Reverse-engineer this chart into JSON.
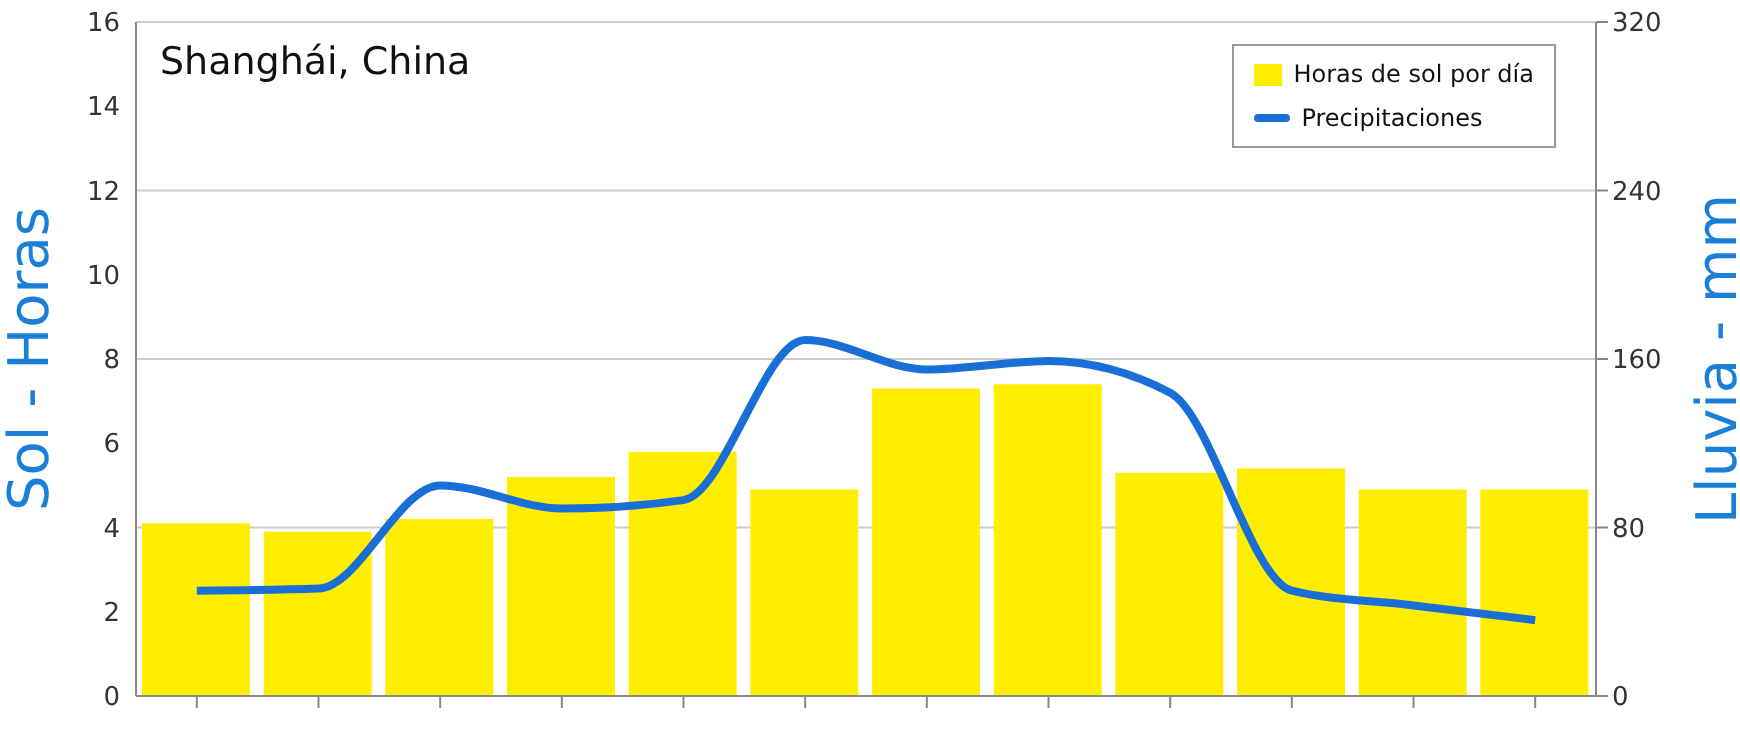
{
  "chart_data": {
    "type": "bar",
    "title": "Shanghái, China",
    "ylabel": "Sol - Horas",
    "y2label": "Lluvia - mm",
    "categories": [
      null,
      null,
      null,
      null,
      null,
      null,
      null,
      null,
      null,
      null,
      null,
      null
    ],
    "series": [
      {
        "name": "Horas de sol por día",
        "color": "#ffee00",
        "values": [
          4.1,
          3.9,
          4.2,
          5.2,
          5.8,
          4.9,
          7.3,
          7.4,
          5.3,
          5.4,
          4.9,
          4.9
        ]
      },
      {
        "name": "Precipitaciones",
        "type": "line",
        "axis": "y2",
        "color": "#1a6fd6",
        "values": [
          50,
          51,
          100,
          89,
          93,
          169,
          155,
          159,
          144,
          50,
          43,
          36
        ]
      }
    ],
    "ylim": [
      0,
      16
    ],
    "yticks": [
      0,
      2,
      4,
      6,
      8,
      10,
      12,
      14,
      16
    ],
    "y2lim": [
      0,
      320
    ],
    "y2ticks": [
      0,
      80,
      160,
      240,
      320
    ],
    "grid": "y",
    "legend": "top right",
    "marker": "none",
    "line_style": "solid"
  }
}
